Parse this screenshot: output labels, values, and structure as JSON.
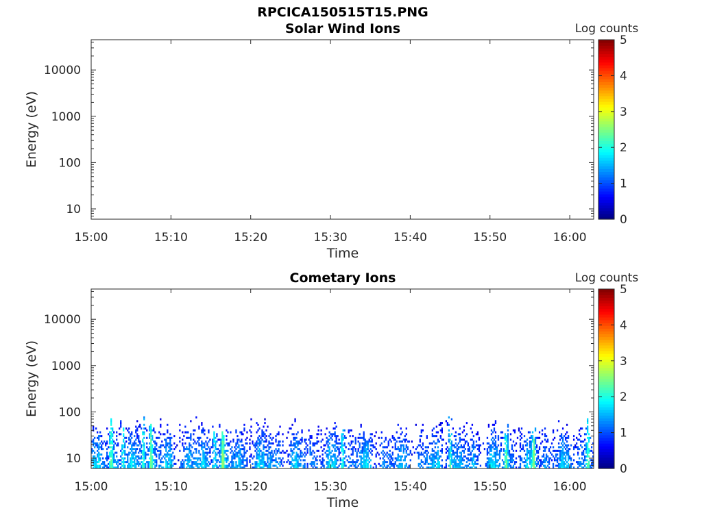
{
  "figure_title": "RPCICA150515T15.PNG",
  "chart_data": [
    {
      "type": "heatmap",
      "title": "Solar Wind Ions",
      "xlabel": "Time",
      "ylabel": "Energy (eV)",
      "x_ticks": [
        "15:00",
        "15:10",
        "15:20",
        "15:30",
        "15:40",
        "15:50",
        "16:00"
      ],
      "x_range_minutes": [
        0,
        63
      ],
      "y_scale": "log",
      "y_ticks": [
        10,
        100,
        1000,
        10000
      ],
      "y_tick_labels": [
        "10",
        "100",
        "1000",
        "10000"
      ],
      "y_range": [
        6,
        45000
      ],
      "colorbar": {
        "label": "Log counts",
        "min": 0,
        "max": 5,
        "ticks": [
          "0",
          "1",
          "2",
          "3",
          "4",
          "5"
        ],
        "colormap": "jet"
      },
      "data_description_note": "",
      "spectrogram": []
    },
    {
      "type": "heatmap",
      "title": "Cometary Ions",
      "xlabel": "Time",
      "ylabel": "Energy (eV)",
      "x_ticks": [
        "15:00",
        "15:10",
        "15:20",
        "15:30",
        "15:40",
        "15:50",
        "16:00"
      ],
      "x_range_minutes": [
        0,
        63
      ],
      "y_scale": "log",
      "y_ticks": [
        10,
        100,
        1000,
        10000
      ],
      "y_tick_labels": [
        "10",
        "100",
        "1000",
        "10000"
      ],
      "y_range": [
        6,
        45000
      ],
      "colorbar": {
        "label": "Log counts",
        "min": 0,
        "max": 5,
        "ticks": [
          "0",
          "1",
          "2",
          "3",
          "4",
          "5"
        ],
        "colormap": "jet"
      },
      "spectrogram_envelope": {
        "energy_min_eV": 6,
        "energy_max_eV": 80,
        "log_counts_typical_range": [
          0.3,
          2.6
        ]
      },
      "bright_bursts_minutes": [
        2.5,
        4.0,
        6.5,
        7.5,
        15.5,
        16.5,
        31.5,
        45.0,
        52.0,
        55.5,
        62.3
      ]
    }
  ]
}
